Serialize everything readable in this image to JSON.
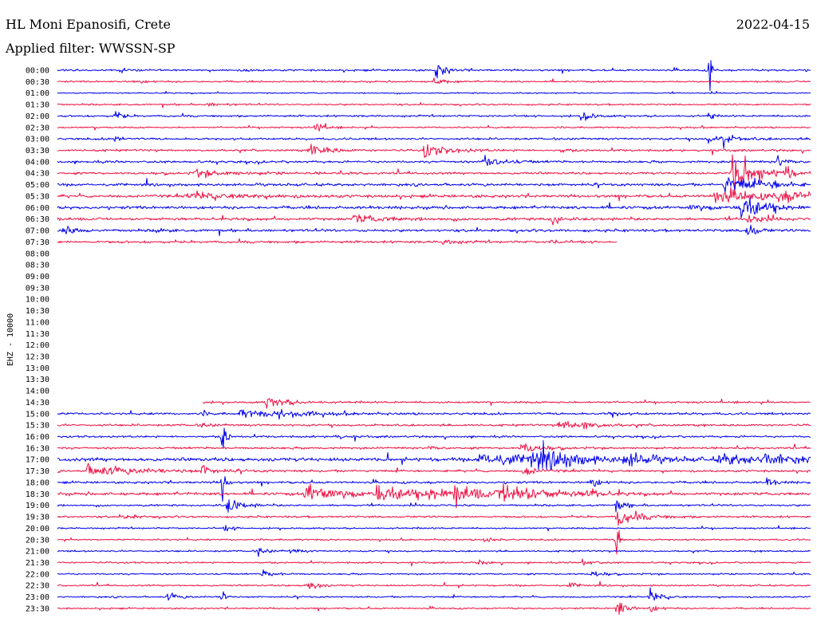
{
  "header": {
    "title": "HL Moni Epanosifi, Crete",
    "date": "2022-04-15",
    "filter": "Applied filter: WWSSN-SP"
  },
  "chart_data": {
    "type": "line",
    "channel_label": "EHZ - 10000",
    "colors": [
      "#0000ee",
      "#ee1144"
    ],
    "row_labels": [
      "00:00",
      "00:30",
      "01:00",
      "01:30",
      "02:00",
      "02:30",
      "03:00",
      "03:30",
      "04:00",
      "04:30",
      "05:00",
      "05:30",
      "06:00",
      "06:30",
      "07:00",
      "07:30",
      "08:00",
      "08:30",
      "09:00",
      "09:30",
      "10:00",
      "10:30",
      "11:00",
      "11:30",
      "12:00",
      "12:30",
      "13:00",
      "13:30",
      "14:00",
      "14:30",
      "15:00",
      "15:30",
      "16:00",
      "16:30",
      "17:00",
      "17:30",
      "18:00",
      "18:30",
      "19:00",
      "19:30",
      "20:00",
      "20:30",
      "21:00",
      "21:30",
      "22:00",
      "22:30",
      "23:00",
      "23:30"
    ],
    "x_unit": "minutes into row",
    "x_range": [
      0,
      30
    ],
    "traces": [
      {
        "row": 0,
        "start": 0,
        "end": 30,
        "noise": 1.2,
        "events": [
          [
            15.1,
            12,
            0.3
          ],
          [
            2.5,
            3,
            0.4
          ],
          [
            7.5,
            2,
            0.3
          ],
          [
            26,
            40,
            0.05
          ]
        ]
      },
      {
        "row": 1,
        "start": 0,
        "end": 30,
        "noise": 1.0,
        "events": [
          [
            15,
            5,
            0.4
          ],
          [
            3,
            2,
            0.5
          ]
        ]
      },
      {
        "row": 2,
        "start": 0,
        "end": 30,
        "noise": 0.8,
        "events": []
      },
      {
        "row": 3,
        "start": 0,
        "end": 30,
        "noise": 1.0,
        "events": [
          [
            6,
            2,
            0.6
          ]
        ]
      },
      {
        "row": 4,
        "start": 0,
        "end": 30,
        "noise": 1.2,
        "events": [
          [
            2.3,
            12,
            0.2
          ],
          [
            20.9,
            10,
            0.3
          ],
          [
            26,
            28,
            0.05
          ]
        ]
      },
      {
        "row": 5,
        "start": 0,
        "end": 30,
        "noise": 1.0,
        "events": [
          [
            10.3,
            8,
            0.3
          ]
        ]
      },
      {
        "row": 6,
        "start": 0,
        "end": 30,
        "noise": 1.3,
        "events": [
          [
            2.3,
            8,
            0.2
          ],
          [
            25.9,
            5,
            1.0
          ],
          [
            26.5,
            10,
            0.2
          ]
        ]
      },
      {
        "row": 7,
        "start": 0,
        "end": 30,
        "noise": 1.3,
        "events": [
          [
            10.1,
            10,
            0.6
          ],
          [
            14.6,
            10,
            0.8
          ],
          [
            20.1,
            3,
            0.3
          ]
        ]
      },
      {
        "row": 8,
        "start": 0,
        "end": 30,
        "noise": 1.4,
        "events": [
          [
            17,
            8,
            0.7
          ],
          [
            28.7,
            8,
            0.3
          ]
        ]
      },
      {
        "row": 9,
        "start": 0,
        "end": 30,
        "noise": 1.4,
        "events": [
          [
            5.5,
            4,
            1.5
          ],
          [
            26.9,
            30,
            0.8
          ],
          [
            29,
            12,
            0.2
          ]
        ]
      },
      {
        "row": 10,
        "start": 0,
        "end": 30,
        "noise": 1.6,
        "events": [
          [
            26.6,
            12,
            1.2
          ],
          [
            28.4,
            4,
            0.4
          ]
        ]
      },
      {
        "row": 11,
        "start": 0,
        "end": 30,
        "noise": 1.8,
        "events": [
          [
            5.2,
            5,
            2.0
          ],
          [
            26.2,
            10,
            1.5
          ],
          [
            28.7,
            6,
            2.0
          ]
        ]
      },
      {
        "row": 12,
        "start": 0,
        "end": 30,
        "noise": 1.8,
        "events": [
          [
            27.2,
            20,
            0.8
          ],
          [
            25.2,
            4,
            1.0
          ]
        ]
      },
      {
        "row": 13,
        "start": 0,
        "end": 30,
        "noise": 1.7,
        "events": [
          [
            11.8,
            5,
            1.2
          ],
          [
            19.7,
            12,
            0.2
          ],
          [
            27.5,
            8,
            0.5
          ]
        ]
      },
      {
        "row": 14,
        "start": 0,
        "end": 30,
        "noise": 1.6,
        "events": [
          [
            0.2,
            6,
            0.5
          ],
          [
            3.9,
            4,
            0.3
          ],
          [
            27.5,
            12,
            0.3
          ]
        ]
      },
      {
        "row": 15,
        "start": 0,
        "end": 22.3,
        "noise": 1.5,
        "events": [
          [
            15.3,
            4,
            0.4
          ],
          [
            19.7,
            3,
            0.3
          ]
        ]
      },
      {
        "row": 29,
        "start": 5.8,
        "end": 30,
        "noise": 1.2,
        "events": [
          [
            8.3,
            8,
            0.8
          ]
        ]
      },
      {
        "row": 30,
        "start": 0,
        "end": 30,
        "noise": 1.4,
        "events": [
          [
            7.3,
            6,
            1.2
          ],
          [
            8.8,
            5,
            1.2
          ],
          [
            5.8,
            3,
            0.2
          ],
          [
            22,
            4,
            0.3
          ]
        ]
      },
      {
        "row": 31,
        "start": 0,
        "end": 30,
        "noise": 1.3,
        "events": [
          [
            20,
            6,
            1.0
          ],
          [
            5.8,
            3,
            0.3
          ],
          [
            21,
            4,
            0.4
          ]
        ]
      },
      {
        "row": 32,
        "start": 0,
        "end": 30,
        "noise": 1.2,
        "events": [
          [
            11,
            3,
            0.4
          ],
          [
            6.6,
            30,
            0.1
          ]
        ]
      },
      {
        "row": 33,
        "start": 0,
        "end": 30,
        "noise": 1.3,
        "events": [
          [
            18.5,
            10,
            0.5
          ],
          [
            14.8,
            3,
            0.3
          ]
        ]
      },
      {
        "row": 34,
        "start": 0,
        "end": 30,
        "noise": 2.2,
        "events": [
          [
            16.8,
            8,
            2.5
          ],
          [
            18.8,
            12,
            1.5
          ],
          [
            22.6,
            8,
            1.0
          ],
          [
            26.4,
            7,
            1.5
          ],
          [
            28.2,
            7,
            1.0
          ],
          [
            20,
            4,
            0.3
          ]
        ]
      },
      {
        "row": 35,
        "start": 0,
        "end": 30,
        "noise": 1.4,
        "events": [
          [
            1.2,
            7,
            2.0
          ],
          [
            5.8,
            10,
            0.3
          ],
          [
            18.6,
            8,
            0.4
          ]
        ]
      },
      {
        "row": 36,
        "start": 0,
        "end": 30,
        "noise": 1.4,
        "events": [
          [
            6.6,
            35,
            0.1
          ],
          [
            21.2,
            8,
            0.3
          ],
          [
            28.3,
            6,
            0.3
          ]
        ]
      },
      {
        "row": 37,
        "start": 0,
        "end": 30,
        "noise": 1.8,
        "events": [
          [
            9.9,
            12,
            1.5
          ],
          [
            12.7,
            12,
            1.3
          ],
          [
            15.8,
            10,
            1.0
          ],
          [
            17.6,
            14,
            1.5
          ],
          [
            21,
            8,
            0.4
          ],
          [
            14.8,
            6,
            0.8
          ]
        ]
      },
      {
        "row": 38,
        "start": 0,
        "end": 30,
        "noise": 1.2,
        "events": [
          [
            6.8,
            10,
            0.5
          ],
          [
            22.3,
            8,
            0.3
          ]
        ]
      },
      {
        "row": 39,
        "start": 0,
        "end": 30,
        "noise": 1.2,
        "events": [
          [
            22.3,
            12,
            0.8
          ],
          [
            2.7,
            4,
            0.4
          ]
        ]
      },
      {
        "row": 40,
        "start": 0,
        "end": 30,
        "noise": 1.0,
        "events": [
          [
            6.7,
            4,
            0.3
          ]
        ]
      },
      {
        "row": 41,
        "start": 0,
        "end": 30,
        "noise": 1.0,
        "events": [
          [
            17,
            4,
            0.4
          ],
          [
            22.3,
            30,
            0.1
          ]
        ]
      },
      {
        "row": 42,
        "start": 0,
        "end": 30,
        "noise": 1.0,
        "events": [
          [
            8,
            6,
            0.3
          ],
          [
            9.3,
            3,
            0.4
          ]
        ]
      },
      {
        "row": 43,
        "start": 0,
        "end": 30,
        "noise": 1.0,
        "events": [
          [
            20.9,
            8,
            0.3
          ],
          [
            16.8,
            3,
            0.3
          ]
        ]
      },
      {
        "row": 44,
        "start": 0,
        "end": 30,
        "noise": 1.0,
        "events": [
          [
            8.2,
            5,
            0.4
          ],
          [
            21.3,
            6,
            0.3
          ]
        ]
      },
      {
        "row": 45,
        "start": 0,
        "end": 30,
        "noise": 1.0,
        "events": [
          [
            10,
            10,
            0.3
          ],
          [
            20.4,
            4,
            0.3
          ]
        ]
      },
      {
        "row": 46,
        "start": 0,
        "end": 30,
        "noise": 1.0,
        "events": [
          [
            4.4,
            5,
            0.4
          ],
          [
            23.6,
            10,
            0.4
          ],
          [
            6.6,
            20,
            0.1
          ]
        ]
      },
      {
        "row": 47,
        "start": 0,
        "end": 30,
        "noise": 1.0,
        "events": [
          [
            22.3,
            14,
            0.3
          ],
          [
            23.6,
            4,
            0.4
          ]
        ]
      }
    ]
  }
}
